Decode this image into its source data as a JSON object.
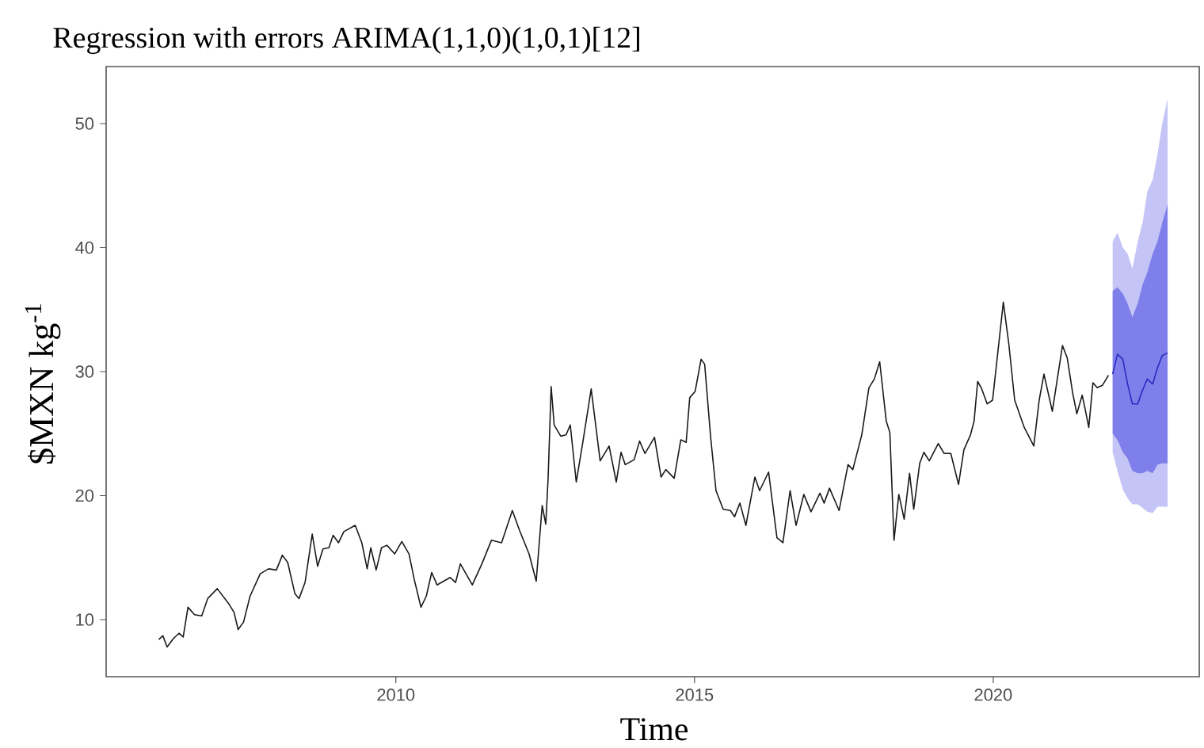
{
  "chart_data": {
    "type": "line",
    "title": "Regression with errors ARIMA(1,1,0)(1,0,1)[12]",
    "xlabel": "Time",
    "ylabel": "$MXN kg$^{-1}$",
    "xlim": [
      2005.15,
      2023.45
    ],
    "ylim": [
      5.4,
      54.6
    ],
    "xticks": [
      2010,
      2015,
      2020
    ],
    "yticks": [
      10,
      20,
      30,
      40,
      50
    ],
    "series": [
      {
        "color": "#1a1a1a",
        "x": [
          2006.03,
          2006.1,
          2006.17,
          2006.28,
          2006.37,
          2006.44,
          2006.52,
          2006.63,
          2006.75,
          2006.85,
          2007.01,
          2007.2,
          2007.29,
          2007.36,
          2007.45,
          2007.56,
          2007.73,
          2007.87,
          2008.0,
          2008.1,
          2008.19,
          2008.31,
          2008.38,
          2008.48,
          2008.6,
          2008.69,
          2008.78,
          2008.88,
          2008.95,
          2009.04,
          2009.13,
          2009.32,
          2009.43,
          2009.52,
          2009.58,
          2009.67,
          2009.76,
          2009.85,
          2009.98,
          2010.1,
          2010.22,
          2010.31,
          2010.42,
          2010.51,
          2010.6,
          2010.69,
          2010.91,
          2011.0,
          2011.08,
          2011.28,
          2011.44,
          2011.6,
          2011.77,
          2011.95,
          2012.07,
          2012.23,
          2012.35,
          2012.45,
          2012.51,
          2012.55,
          2012.6,
          2012.65,
          2012.76,
          2012.85,
          2012.92,
          2013.02,
          2013.13,
          2013.27,
          2013.42,
          2013.57,
          2013.69,
          2013.77,
          2013.84,
          2013.99,
          2014.08,
          2014.17,
          2014.33,
          2014.44,
          2014.52,
          2014.66,
          2014.77,
          2014.86,
          2014.92,
          2015.01,
          2015.11,
          2015.17,
          2015.27,
          2015.36,
          2015.48,
          2015.6,
          2015.67,
          2015.76,
          2015.86,
          2016.01,
          2016.09,
          2016.24,
          2016.38,
          2016.48,
          2016.6,
          2016.7,
          2016.83,
          2016.95,
          2017.1,
          2017.17,
          2017.26,
          2017.42,
          2017.57,
          2017.65,
          2017.8,
          2017.92,
          2018.01,
          2018.1,
          2018.21,
          2018.27,
          2018.34,
          2018.42,
          2018.51,
          2018.6,
          2018.67,
          2018.77,
          2018.84,
          2018.93,
          2019.08,
          2019.18,
          2019.29,
          2019.42,
          2019.51,
          2019.62,
          2019.68,
          2019.74,
          2019.8,
          2019.9,
          2019.99,
          2020.17,
          2020.26,
          2020.36,
          2020.52,
          2020.68,
          2020.77,
          2020.85,
          2020.99,
          2021.16,
          2021.24,
          2021.33,
          2021.4,
          2021.49,
          2021.53,
          2021.6,
          2021.67,
          2021.74,
          2021.83,
          2021.93
        ],
        "values": [
          8.4,
          8.7,
          7.8,
          8.5,
          8.9,
          8.6,
          11.0,
          10.4,
          10.3,
          11.7,
          12.5,
          11.3,
          10.6,
          9.2,
          9.8,
          11.9,
          13.7,
          14.1,
          14.0,
          15.2,
          14.6,
          12.1,
          11.7,
          13.0,
          16.9,
          14.3,
          15.7,
          15.8,
          16.8,
          16.2,
          17.1,
          17.6,
          16.2,
          14.1,
          15.8,
          14.0,
          15.8,
          16.0,
          15.3,
          16.3,
          15.3,
          13.2,
          11.0,
          11.9,
          13.8,
          12.8,
          13.4,
          13.0,
          14.5,
          12.8,
          14.5,
          16.4,
          16.2,
          18.8,
          17.2,
          15.3,
          13.1,
          19.2,
          17.7,
          21.5,
          28.8,
          25.7,
          24.8,
          24.9,
          25.7,
          21.1,
          24.3,
          28.6,
          22.8,
          24.0,
          21.1,
          23.5,
          22.5,
          22.9,
          24.4,
          23.4,
          24.7,
          21.5,
          22.1,
          21.4,
          24.5,
          24.3,
          27.9,
          28.4,
          31.0,
          30.6,
          24.7,
          20.4,
          18.9,
          18.8,
          18.3,
          19.4,
          17.6,
          21.5,
          20.4,
          21.9,
          16.6,
          16.2,
          20.4,
          17.6,
          20.1,
          18.7,
          20.2,
          19.4,
          20.6,
          18.8,
          22.5,
          22.1,
          24.9,
          28.7,
          29.4,
          30.8,
          26.0,
          25.1,
          16.4,
          20.1,
          18.1,
          21.8,
          18.9,
          22.6,
          23.5,
          22.8,
          24.2,
          23.4,
          23.4,
          20.9,
          23.7,
          24.9,
          26.0,
          29.2,
          28.7,
          27.4,
          27.7,
          35.6,
          32.3,
          27.7,
          25.5,
          24.0,
          27.7,
          29.8,
          26.8,
          32.1,
          31.1,
          28.3,
          26.6,
          28.1,
          27.2,
          25.5,
          29.1,
          28.7,
          28.9,
          29.7
        ]
      },
      {
        "color": "#c4c4f6",
        "x": [
          2022.0,
          2022.08,
          2022.17,
          2022.25,
          2022.33,
          2022.42,
          2022.5,
          2022.58,
          2022.67,
          2022.75,
          2022.83,
          2022.92
        ],
        "values": [
          null,
          null,
          null,
          null,
          null,
          null,
          null,
          null,
          null,
          null,
          null,
          null
        ],
        "lower": [
          23.5,
          22.0,
          20.5,
          19.8,
          19.3,
          19.3,
          19.0,
          18.7,
          18.6,
          19.1,
          19.1,
          19.1
        ],
        "upper": [
          40.5,
          41.2,
          40.0,
          39.5,
          38.3,
          40.5,
          42.0,
          44.5,
          45.5,
          47.5,
          50.0,
          52.0
        ]
      },
      {
        "color": "#7f7feb",
        "x": [
          2022.0,
          2022.08,
          2022.17,
          2022.25,
          2022.33,
          2022.42,
          2022.5,
          2022.58,
          2022.67,
          2022.75,
          2022.83,
          2022.92
        ],
        "values": [
          null,
          null,
          null,
          null,
          null,
          null,
          null,
          null,
          null,
          null,
          null,
          null
        ],
        "lower": [
          25.0,
          24.5,
          23.5,
          23.0,
          22.0,
          21.8,
          21.8,
          22.0,
          21.8,
          22.5,
          22.6,
          22.6
        ],
        "upper": [
          36.5,
          36.8,
          36.3,
          35.5,
          34.4,
          35.5,
          37.0,
          38.0,
          39.5,
          40.5,
          42.0,
          43.5
        ]
      },
      {
        "color": "#2a2ac0",
        "x": [
          2022.0,
          2022.08,
          2022.17,
          2022.25,
          2022.33,
          2022.42,
          2022.5,
          2022.58,
          2022.67,
          2022.75,
          2022.83,
          2022.92
        ],
        "values": [
          29.8,
          31.4,
          31.0,
          29.0,
          27.4,
          27.4,
          28.5,
          29.4,
          29.0,
          30.3,
          31.3,
          31.5
        ]
      }
    ]
  }
}
